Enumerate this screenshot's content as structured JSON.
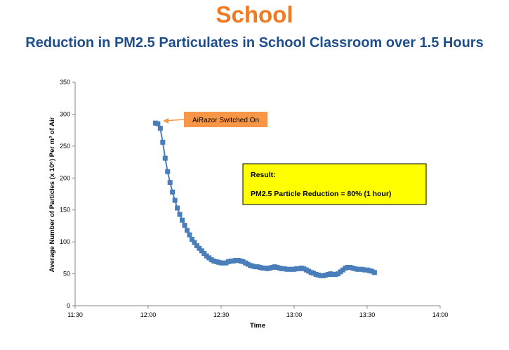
{
  "page": {
    "title": "School",
    "subtitle": "Reduction in PM2.5 Particulates in School Classroom over 1.5 Hours"
  },
  "colors": {
    "title": "#f07a22",
    "subtitle": "#1f4e8c",
    "series": "#4a7ebb",
    "annotation_fill": "#f79646",
    "result_fill": "#ffff00"
  },
  "chart_data": {
    "type": "line",
    "title": "",
    "xlabel": "Time",
    "ylabel": "Average Number of Particles (x 10⁶) Per m³ of Air",
    "ylim": [
      0,
      350
    ],
    "yticks": [
      0,
      50,
      100,
      150,
      200,
      250,
      300,
      350
    ],
    "xlim": [
      "11:30",
      "14:00"
    ],
    "xticks": [
      "11:30",
      "12:00",
      "12:30",
      "13:00",
      "13:30",
      "14:00"
    ],
    "grid": false,
    "markers": "square",
    "series": [
      {
        "name": "",
        "x": [
          "12:03",
          "12:04",
          "12:05",
          "12:06",
          "12:07",
          "12:08",
          "12:09",
          "12:10",
          "12:11",
          "12:12",
          "12:13",
          "12:14",
          "12:15",
          "12:16",
          "12:17",
          "12:18",
          "12:19",
          "12:20",
          "12:21",
          "12:22",
          "12:23",
          "12:24",
          "12:25",
          "12:26",
          "12:27",
          "12:28",
          "12:29",
          "12:30",
          "12:31",
          "12:32",
          "12:33",
          "12:34",
          "12:35",
          "12:36",
          "12:37",
          "12:38",
          "12:39",
          "12:40",
          "12:41",
          "12:42",
          "12:43",
          "12:44",
          "12:45",
          "12:46",
          "12:47",
          "12:48",
          "12:49",
          "12:50",
          "12:51",
          "12:52",
          "12:53",
          "12:54",
          "12:55",
          "12:56",
          "12:57",
          "12:58",
          "12:59",
          "13:00",
          "13:01",
          "13:02",
          "13:03",
          "13:04",
          "13:05",
          "13:06",
          "13:07",
          "13:08",
          "13:09",
          "13:10",
          "13:11",
          "13:12",
          "13:13",
          "13:14",
          "13:15",
          "13:16",
          "13:17",
          "13:18",
          "13:19",
          "13:20",
          "13:21",
          "13:22",
          "13:23",
          "13:24",
          "13:25",
          "13:26",
          "13:27",
          "13:28",
          "13:29",
          "13:30",
          "13:31",
          "13:32",
          "13:33"
        ],
        "y": [
          286,
          285,
          278,
          256,
          231,
          210,
          193,
          178,
          165,
          153,
          143,
          134,
          126,
          118,
          111,
          104,
          99,
          94,
          90,
          86,
          82,
          78,
          75,
          72,
          70,
          69,
          68,
          67,
          67,
          67,
          69,
          70,
          70,
          71,
          71,
          70,
          69,
          67,
          65,
          63,
          62,
          61,
          61,
          60,
          59,
          59,
          58,
          59,
          60,
          61,
          60,
          59,
          58,
          58,
          57,
          57,
          57,
          57,
          58,
          58,
          59,
          58,
          56,
          54,
          52,
          51,
          49,
          48,
          47,
          47,
          48,
          49,
          50,
          49,
          49,
          50,
          53,
          56,
          59,
          60,
          60,
          59,
          58,
          57,
          57,
          57,
          56,
          56,
          55,
          54,
          52
        ]
      }
    ],
    "annotations": [
      {
        "text": "AiRazor Switched On",
        "points_to": {
          "x": "12:03",
          "y": 286
        }
      }
    ],
    "result_box": {
      "heading": "Result:",
      "text": "PM2.5 Particle Reduction =  80% (1 hour)"
    }
  }
}
